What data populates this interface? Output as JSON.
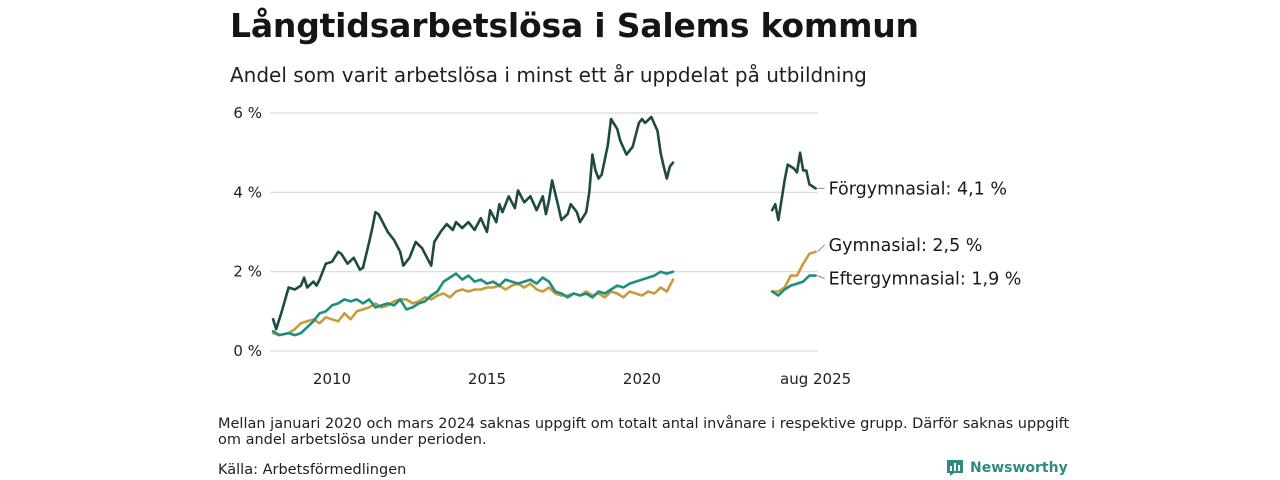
{
  "title": "Långtidsarbetslösa i Salems kommun",
  "subtitle": "Andel som varit arbetslösa i minst ett år uppdelat på utbildning",
  "note": "Mellan januari 2020 och mars 2024 saknas uppgift om totalt antal invånare i respektive grupp. Därför saknas uppgift om andel arbetslösa under perioden.",
  "source": "Källa: Arbetsförmedlingen",
  "brand": "Newsworthy",
  "chart_data": {
    "type": "line",
    "title": "Långtidsarbetslösa i Salems kommun",
    "subtitle": "Andel som varit arbetslösa i minst ett år uppdelat på utbildning",
    "ylim": [
      0,
      6
    ],
    "yticks": [
      0,
      2,
      4,
      6
    ],
    "ytick_labels": [
      "0 %",
      "2 %",
      "4 %",
      "6 %"
    ],
    "xticks": [
      2010,
      2015,
      2020,
      2025.6
    ],
    "xtick_labels": [
      "2010",
      "2015",
      "2020",
      "aug 2025"
    ],
    "grid": "horizontal",
    "x_unit": "year (decimal)",
    "series": [
      {
        "name": "Förgymnasial",
        "end_label": "Förgymnasial: 4,1 %",
        "color": "#1e4a42",
        "segments": [
          [
            [
              2008.1,
              0.8
            ],
            [
              2008.2,
              0.55
            ],
            [
              2008.4,
              1.05
            ],
            [
              2008.6,
              1.6
            ],
            [
              2008.8,
              1.55
            ],
            [
              2009.0,
              1.65
            ],
            [
              2009.1,
              1.85
            ],
            [
              2009.2,
              1.6
            ],
            [
              2009.4,
              1.75
            ],
            [
              2009.5,
              1.65
            ],
            [
              2009.6,
              1.8
            ],
            [
              2009.8,
              2.2
            ],
            [
              2010.0,
              2.25
            ],
            [
              2010.2,
              2.5
            ],
            [
              2010.3,
              2.45
            ],
            [
              2010.5,
              2.2
            ],
            [
              2010.7,
              2.35
            ],
            [
              2010.9,
              2.05
            ],
            [
              2011.0,
              2.1
            ],
            [
              2011.2,
              2.75
            ],
            [
              2011.3,
              3.1
            ],
            [
              2011.4,
              3.5
            ],
            [
              2011.5,
              3.45
            ],
            [
              2011.6,
              3.3
            ],
            [
              2011.8,
              3.0
            ],
            [
              2012.0,
              2.8
            ],
            [
              2012.2,
              2.5
            ],
            [
              2012.3,
              2.15
            ],
            [
              2012.5,
              2.35
            ],
            [
              2012.7,
              2.75
            ],
            [
              2012.9,
              2.6
            ],
            [
              2013.1,
              2.3
            ],
            [
              2013.2,
              2.15
            ],
            [
              2013.3,
              2.75
            ],
            [
              2013.5,
              3.0
            ],
            [
              2013.7,
              3.2
            ],
            [
              2013.9,
              3.05
            ],
            [
              2014.0,
              3.25
            ],
            [
              2014.2,
              3.1
            ],
            [
              2014.4,
              3.25
            ],
            [
              2014.6,
              3.05
            ],
            [
              2014.8,
              3.35
            ],
            [
              2015.0,
              3.0
            ],
            [
              2015.1,
              3.55
            ],
            [
              2015.3,
              3.25
            ],
            [
              2015.4,
              3.7
            ],
            [
              2015.5,
              3.5
            ],
            [
              2015.7,
              3.9
            ],
            [
              2015.9,
              3.6
            ],
            [
              2016.0,
              4.05
            ],
            [
              2016.2,
              3.75
            ],
            [
              2016.4,
              3.9
            ],
            [
              2016.6,
              3.55
            ],
            [
              2016.8,
              3.9
            ],
            [
              2016.9,
              3.45
            ],
            [
              2017.0,
              3.8
            ],
            [
              2017.1,
              4.3
            ],
            [
              2017.3,
              3.65
            ],
            [
              2017.4,
              3.3
            ],
            [
              2017.6,
              3.45
            ],
            [
              2017.7,
              3.7
            ],
            [
              2017.9,
              3.5
            ],
            [
              2018.0,
              3.25
            ],
            [
              2018.2,
              3.5
            ],
            [
              2018.3,
              4.0
            ],
            [
              2018.4,
              4.95
            ],
            [
              2018.5,
              4.55
            ],
            [
              2018.6,
              4.35
            ],
            [
              2018.7,
              4.45
            ],
            [
              2018.9,
              5.2
            ],
            [
              2019.0,
              5.85
            ],
            [
              2019.2,
              5.6
            ],
            [
              2019.3,
              5.3
            ],
            [
              2019.5,
              4.95
            ],
            [
              2019.7,
              5.15
            ],
            [
              2019.9,
              5.75
            ],
            [
              2020.0,
              5.85
            ],
            [
              2020.1,
              5.75
            ],
            [
              2020.3,
              5.9
            ],
            [
              2020.5,
              5.55
            ],
            [
              2020.6,
              5.0
            ],
            [
              2020.7,
              4.65
            ],
            [
              2020.8,
              4.35
            ],
            [
              2020.9,
              4.65
            ],
            [
              2021.0,
              4.75
            ]
          ],
          [
            [
              2024.2,
              3.55
            ],
            [
              2024.3,
              3.7
            ],
            [
              2024.4,
              3.3
            ],
            [
              2024.6,
              4.3
            ],
            [
              2024.7,
              4.7
            ],
            [
              2024.9,
              4.6
            ],
            [
              2025.0,
              4.5
            ],
            [
              2025.1,
              5.0
            ],
            [
              2025.2,
              4.55
            ],
            [
              2025.3,
              4.55
            ],
            [
              2025.4,
              4.2
            ],
            [
              2025.6,
              4.1
            ]
          ]
        ]
      },
      {
        "name": "Gymnasial",
        "end_label": "Gymnasial: 2,5 %",
        "color": "#c99a3e",
        "segments": [
          [
            [
              2008.1,
              0.45
            ],
            [
              2008.3,
              0.4
            ],
            [
              2008.6,
              0.45
            ],
            [
              2008.8,
              0.55
            ],
            [
              2009.0,
              0.7
            ],
            [
              2009.2,
              0.75
            ],
            [
              2009.4,
              0.8
            ],
            [
              2009.6,
              0.7
            ],
            [
              2009.8,
              0.85
            ],
            [
              2010.0,
              0.8
            ],
            [
              2010.2,
              0.75
            ],
            [
              2010.4,
              0.95
            ],
            [
              2010.6,
              0.8
            ],
            [
              2010.8,
              1.0
            ],
            [
              2011.0,
              1.05
            ],
            [
              2011.2,
              1.1
            ],
            [
              2011.4,
              1.2
            ],
            [
              2011.6,
              1.1
            ],
            [
              2011.8,
              1.15
            ],
            [
              2012.0,
              1.25
            ],
            [
              2012.2,
              1.3
            ],
            [
              2012.4,
              1.3
            ],
            [
              2012.6,
              1.2
            ],
            [
              2012.8,
              1.25
            ],
            [
              2013.0,
              1.35
            ],
            [
              2013.2,
              1.3
            ],
            [
              2013.4,
              1.4
            ],
            [
              2013.6,
              1.45
            ],
            [
              2013.8,
              1.35
            ],
            [
              2014.0,
              1.5
            ],
            [
              2014.2,
              1.55
            ],
            [
              2014.4,
              1.5
            ],
            [
              2014.6,
              1.55
            ],
            [
              2014.8,
              1.55
            ],
            [
              2015.0,
              1.6
            ],
            [
              2015.2,
              1.6
            ],
            [
              2015.4,
              1.65
            ],
            [
              2015.6,
              1.55
            ],
            [
              2015.8,
              1.65
            ],
            [
              2016.0,
              1.7
            ],
            [
              2016.2,
              1.6
            ],
            [
              2016.4,
              1.7
            ],
            [
              2016.6,
              1.55
            ],
            [
              2016.8,
              1.5
            ],
            [
              2017.0,
              1.6
            ],
            [
              2017.2,
              1.45
            ],
            [
              2017.4,
              1.4
            ],
            [
              2017.6,
              1.4
            ],
            [
              2017.8,
              1.45
            ],
            [
              2018.0,
              1.4
            ],
            [
              2018.2,
              1.5
            ],
            [
              2018.4,
              1.4
            ],
            [
              2018.6,
              1.45
            ],
            [
              2018.8,
              1.35
            ],
            [
              2019.0,
              1.5
            ],
            [
              2019.2,
              1.45
            ],
            [
              2019.4,
              1.35
            ],
            [
              2019.6,
              1.5
            ],
            [
              2019.8,
              1.45
            ],
            [
              2020.0,
              1.4
            ],
            [
              2020.2,
              1.5
            ],
            [
              2020.4,
              1.45
            ],
            [
              2020.6,
              1.6
            ],
            [
              2020.8,
              1.5
            ],
            [
              2021.0,
              1.8
            ]
          ],
          [
            [
              2024.2,
              1.5
            ],
            [
              2024.4,
              1.5
            ],
            [
              2024.6,
              1.6
            ],
            [
              2024.8,
              1.9
            ],
            [
              2025.0,
              1.9
            ],
            [
              2025.2,
              2.2
            ],
            [
              2025.4,
              2.45
            ],
            [
              2025.6,
              2.5
            ]
          ]
        ]
      },
      {
        "name": "Eftergymnasial",
        "end_label": "Eftergymnasial: 1,9 %",
        "color": "#1d8f7e",
        "segments": [
          [
            [
              2008.1,
              0.5
            ],
            [
              2008.3,
              0.4
            ],
            [
              2008.6,
              0.45
            ],
            [
              2008.8,
              0.4
            ],
            [
              2009.0,
              0.45
            ],
            [
              2009.2,
              0.6
            ],
            [
              2009.4,
              0.75
            ],
            [
              2009.6,
              0.95
            ],
            [
              2009.8,
              1.0
            ],
            [
              2010.0,
              1.15
            ],
            [
              2010.2,
              1.2
            ],
            [
              2010.4,
              1.3
            ],
            [
              2010.6,
              1.25
            ],
            [
              2010.8,
              1.3
            ],
            [
              2011.0,
              1.2
            ],
            [
              2011.2,
              1.3
            ],
            [
              2011.4,
              1.1
            ],
            [
              2011.6,
              1.15
            ],
            [
              2011.8,
              1.2
            ],
            [
              2012.0,
              1.15
            ],
            [
              2012.2,
              1.3
            ],
            [
              2012.4,
              1.05
            ],
            [
              2012.6,
              1.1
            ],
            [
              2012.8,
              1.2
            ],
            [
              2013.0,
              1.25
            ],
            [
              2013.2,
              1.4
            ],
            [
              2013.4,
              1.5
            ],
            [
              2013.6,
              1.75
            ],
            [
              2013.8,
              1.85
            ],
            [
              2014.0,
              1.95
            ],
            [
              2014.2,
              1.8
            ],
            [
              2014.4,
              1.9
            ],
            [
              2014.6,
              1.75
            ],
            [
              2014.8,
              1.8
            ],
            [
              2015.0,
              1.7
            ],
            [
              2015.2,
              1.75
            ],
            [
              2015.4,
              1.65
            ],
            [
              2015.6,
              1.8
            ],
            [
              2015.8,
              1.75
            ],
            [
              2016.0,
              1.7
            ],
            [
              2016.2,
              1.75
            ],
            [
              2016.4,
              1.8
            ],
            [
              2016.6,
              1.7
            ],
            [
              2016.8,
              1.85
            ],
            [
              2017.0,
              1.75
            ],
            [
              2017.2,
              1.5
            ],
            [
              2017.4,
              1.45
            ],
            [
              2017.6,
              1.35
            ],
            [
              2017.8,
              1.45
            ],
            [
              2018.0,
              1.4
            ],
            [
              2018.2,
              1.45
            ],
            [
              2018.4,
              1.35
            ],
            [
              2018.6,
              1.5
            ],
            [
              2018.8,
              1.45
            ],
            [
              2019.0,
              1.55
            ],
            [
              2019.2,
              1.65
            ],
            [
              2019.4,
              1.6
            ],
            [
              2019.6,
              1.7
            ],
            [
              2019.8,
              1.75
            ],
            [
              2020.0,
              1.8
            ],
            [
              2020.2,
              1.85
            ],
            [
              2020.4,
              1.9
            ],
            [
              2020.6,
              2.0
            ],
            [
              2020.8,
              1.95
            ],
            [
              2021.0,
              2.0
            ]
          ],
          [
            [
              2024.2,
              1.5
            ],
            [
              2024.4,
              1.4
            ],
            [
              2024.6,
              1.55
            ],
            [
              2024.8,
              1.65
            ],
            [
              2025.0,
              1.7
            ],
            [
              2025.2,
              1.75
            ],
            [
              2025.4,
              1.9
            ],
            [
              2025.6,
              1.9
            ]
          ]
        ]
      }
    ]
  }
}
